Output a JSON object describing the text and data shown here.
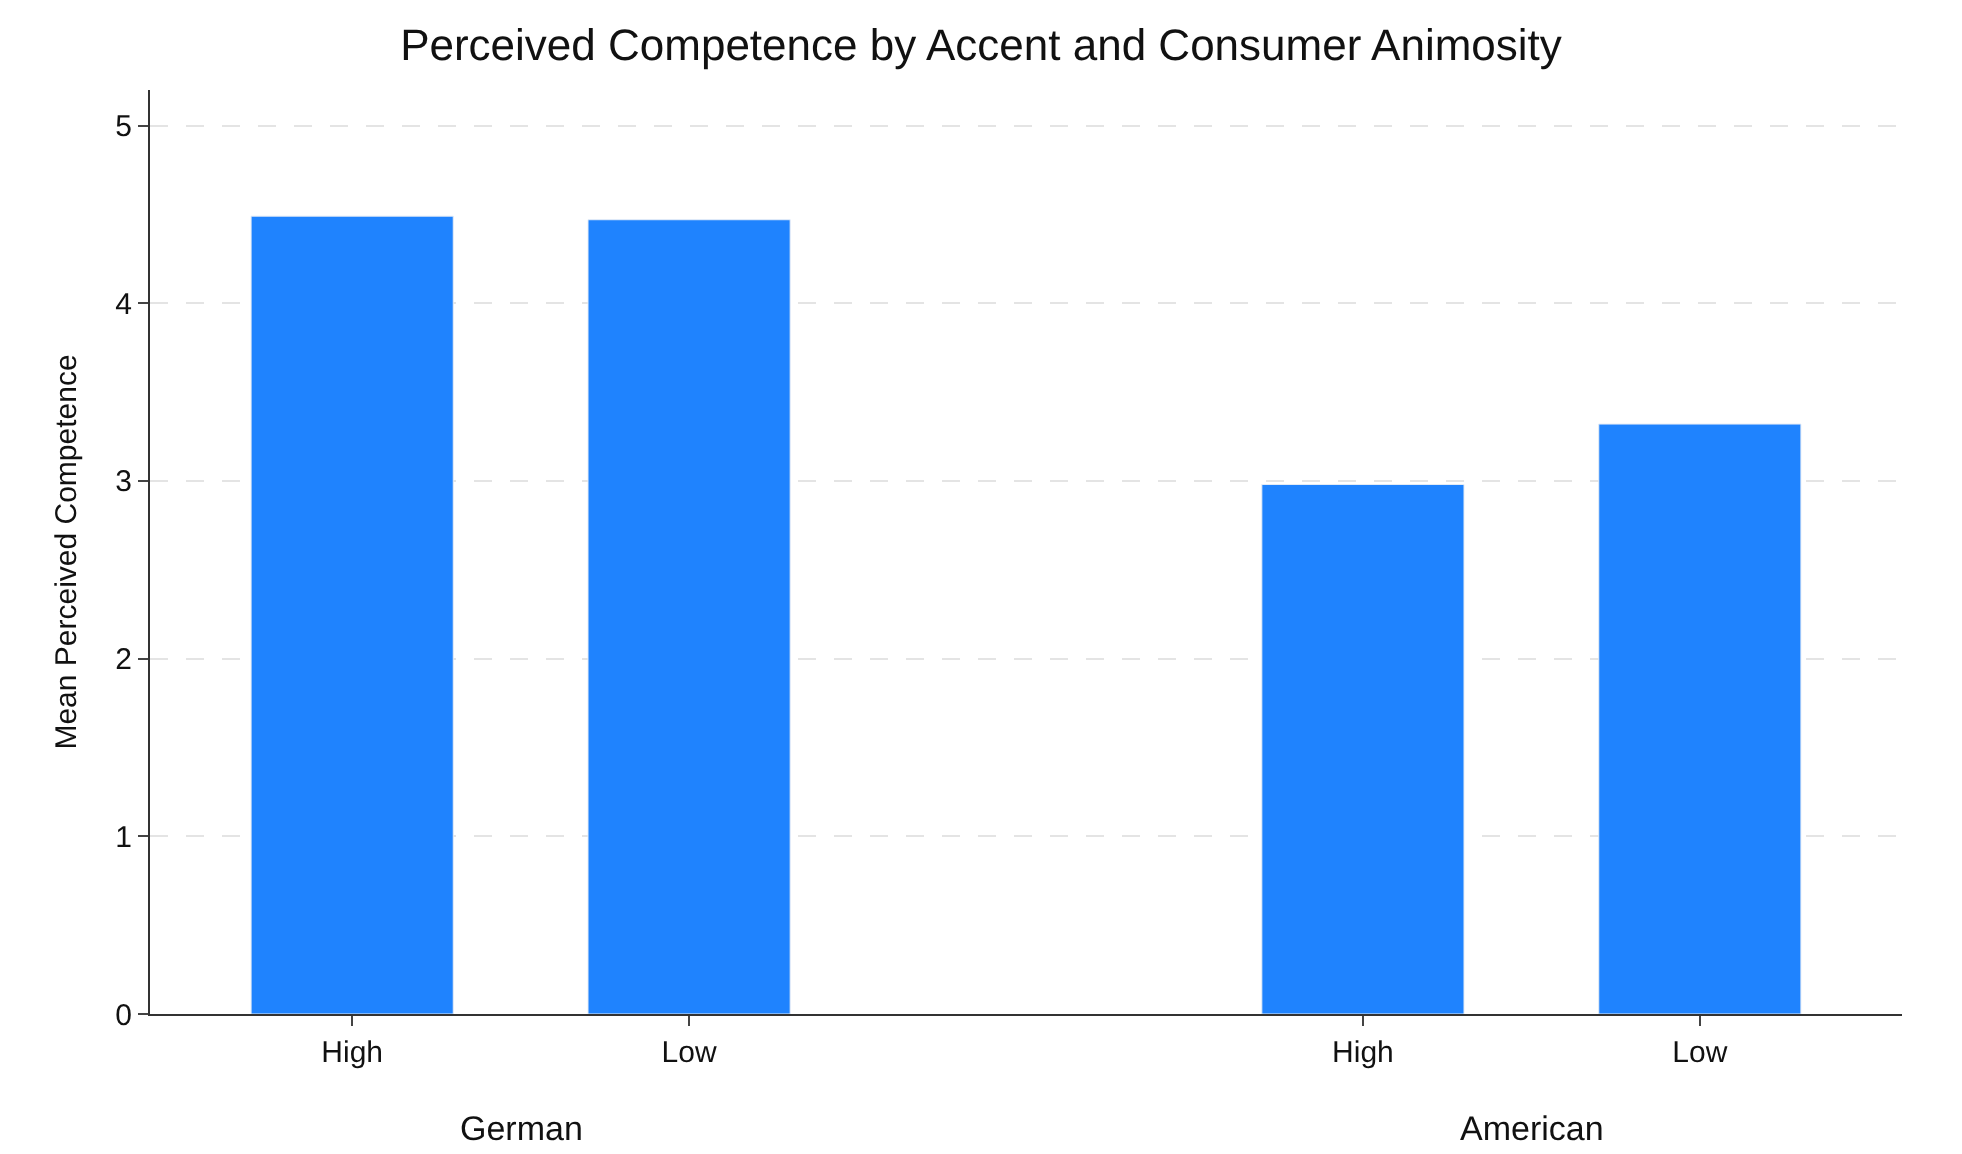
{
  "chart_data": {
    "type": "bar",
    "title": "Perceived Competence by Accent and Consumer Animosity",
    "ylabel": "Mean Perceived Competence",
    "categories": [
      "High",
      "Low",
      null,
      "High",
      "Low"
    ],
    "values": [
      4.49,
      4.47,
      null,
      2.98,
      3.32
    ],
    "color": "#1f83fe",
    "ylim": [
      0,
      5.2
    ],
    "yticks": [
      0,
      1,
      2,
      3,
      4,
      5
    ],
    "grid": "y",
    "annotations": [
      "German",
      "American"
    ]
  }
}
